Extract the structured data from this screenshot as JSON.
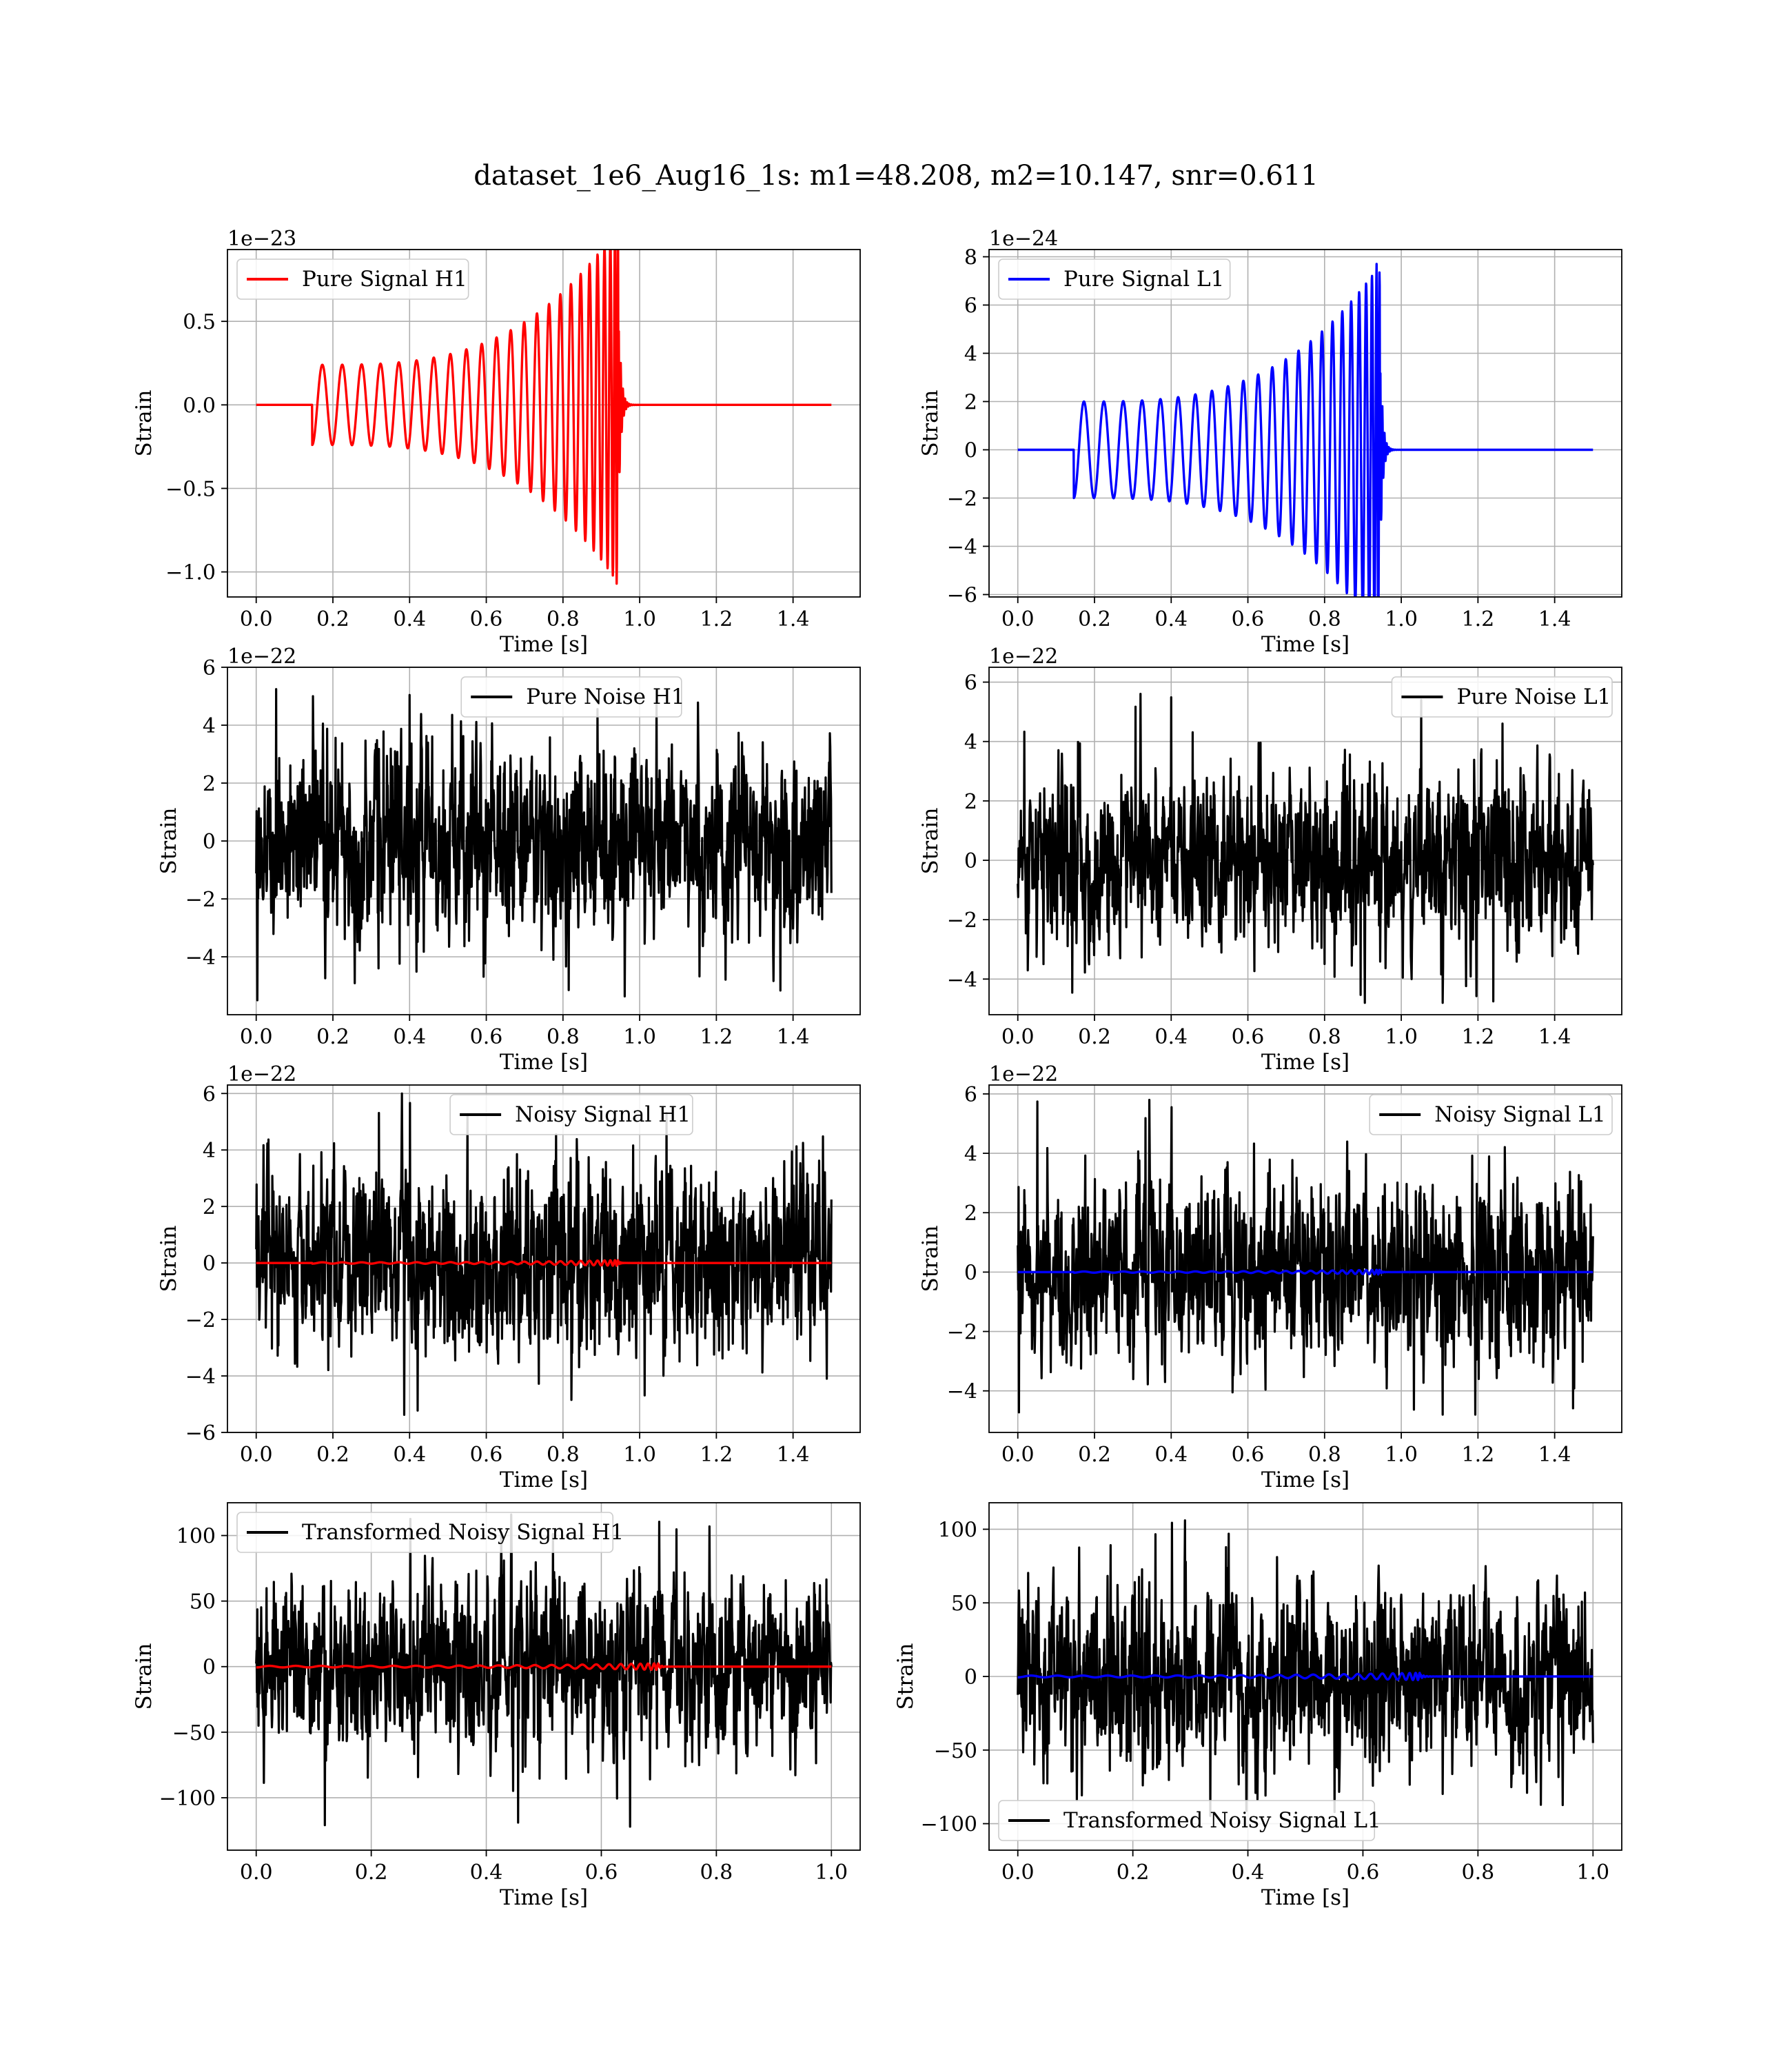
{
  "title": "dataset_1e6_Aug16_1s: m1=48.208, m2=10.147, snr=0.611",
  "colors": {
    "h1_signal": "#ff0000",
    "l1_signal": "#0000ff",
    "noise": "#000000",
    "grid": "#b0b0b0"
  },
  "chart_data": [
    {
      "type": "line",
      "legend": "Pure Signal H1",
      "legend_position": "top-left",
      "xlabel": "Time [s]",
      "ylabel": "Strain",
      "offset_text": "1e−23",
      "xlim": [
        -0.075,
        1.575
      ],
      "ylim": [
        -1.15,
        0.93
      ],
      "xticks": [
        0.0,
        0.2,
        0.4,
        0.6,
        0.8,
        1.0,
        1.2,
        1.4
      ],
      "xtick_labels": [
        "0.0",
        "0.2",
        "0.4",
        "0.6",
        "0.8",
        "1.0",
        "1.2",
        "1.4"
      ],
      "yticks": [
        -1.0,
        -0.5,
        0.0,
        0.5
      ],
      "ytick_labels": [
        "−1.0",
        "−0.5",
        "0.0",
        "0.5"
      ],
      "grid": true,
      "series": [
        {
          "name": "Pure Signal H1",
          "kind": "chirp",
          "color": "#ff0000",
          "t_start": 0.146,
          "t_merge": 0.945,
          "t_end": 1.5,
          "amp_start": 0.24,
          "amp_peak": 1.07,
          "n_cycles": 24,
          "peak_max": 0.83,
          "peak_min": -1.07
        }
      ]
    },
    {
      "type": "line",
      "legend": "Pure Signal L1",
      "legend_position": "top-left",
      "xlabel": "Time [s]",
      "ylabel": "Strain",
      "offset_text": "1e−24",
      "xlim": [
        -0.075,
        1.575
      ],
      "ylim": [
        -6.1,
        8.3
      ],
      "xticks": [
        0.0,
        0.2,
        0.4,
        0.6,
        0.8,
        1.0,
        1.2,
        1.4
      ],
      "xtick_labels": [
        "0.0",
        "0.2",
        "0.4",
        "0.6",
        "0.8",
        "1.0",
        "1.2",
        "1.4"
      ],
      "yticks": [
        -6,
        -4,
        -2,
        0,
        2,
        4,
        6,
        8
      ],
      "ytick_labels": [
        "−6",
        "−4",
        "−2",
        "0",
        "2",
        "4",
        "6",
        "8"
      ],
      "grid": true,
      "series": [
        {
          "name": "Pure Signal L1",
          "kind": "chirp",
          "color": "#0000ff",
          "t_start": 0.146,
          "t_merge": 0.945,
          "t_end": 1.5,
          "amp_start": 2.0,
          "amp_peak": 7.7,
          "n_cycles": 24,
          "peak_max": 7.7,
          "peak_min": -5.5
        }
      ]
    },
    {
      "type": "line",
      "legend": "Pure Noise H1",
      "legend_position": "top-center",
      "xlabel": "Time [s]",
      "ylabel": "Strain",
      "offset_text": "1e−22",
      "xlim": [
        -0.075,
        1.575
      ],
      "ylim": [
        -6.0,
        6.0
      ],
      "xticks": [
        0.0,
        0.2,
        0.4,
        0.6,
        0.8,
        1.0,
        1.2,
        1.4
      ],
      "xtick_labels": [
        "0.0",
        "0.2",
        "0.4",
        "0.6",
        "0.8",
        "1.0",
        "1.2",
        "1.4"
      ],
      "yticks": [
        -4,
        -2,
        0,
        2,
        4,
        6
      ],
      "ytick_labels": [
        "−4",
        "−2",
        "0",
        "2",
        "4",
        "6"
      ],
      "grid": true,
      "series": [
        {
          "name": "Pure Noise H1",
          "kind": "noise",
          "color": "#000000",
          "t_start": 0.0,
          "t_end": 1.5,
          "sigma": 1.6,
          "max": 5.5,
          "min": -5.5
        }
      ]
    },
    {
      "type": "line",
      "legend": "Pure Noise L1",
      "legend_position": "top-right",
      "xlabel": "Time [s]",
      "ylabel": "Strain",
      "offset_text": "1e−22",
      "xlim": [
        -0.075,
        1.575
      ],
      "ylim": [
        -5.2,
        6.5
      ],
      "xticks": [
        0.0,
        0.2,
        0.4,
        0.6,
        0.8,
        1.0,
        1.2,
        1.4
      ],
      "xtick_labels": [
        "0.0",
        "0.2",
        "0.4",
        "0.6",
        "0.8",
        "1.0",
        "1.2",
        "1.4"
      ],
      "yticks": [
        -4,
        -2,
        0,
        2,
        4,
        6
      ],
      "ytick_labels": [
        "−4",
        "−2",
        "0",
        "2",
        "4",
        "6"
      ],
      "grid": true,
      "series": [
        {
          "name": "Pure Noise L1",
          "kind": "noise",
          "color": "#000000",
          "t_start": 0.0,
          "t_end": 1.5,
          "sigma": 1.5,
          "max": 5.9,
          "min": -4.8
        }
      ]
    },
    {
      "type": "line",
      "legend": "Noisy Signal H1",
      "legend_position": "top-center",
      "xlabel": "Time [s]",
      "ylabel": "Strain",
      "offset_text": "1e−22",
      "xlim": [
        -0.075,
        1.575
      ],
      "ylim": [
        -6.0,
        6.3
      ],
      "xticks": [
        0.0,
        0.2,
        0.4,
        0.6,
        0.8,
        1.0,
        1.2,
        1.4
      ],
      "xtick_labels": [
        "0.0",
        "0.2",
        "0.4",
        "0.6",
        "0.8",
        "1.0",
        "1.2",
        "1.4"
      ],
      "yticks": [
        -6,
        -4,
        -2,
        0,
        2,
        4,
        6
      ],
      "ytick_labels": [
        "−6",
        "−4",
        "−2",
        "0",
        "2",
        "4",
        "6"
      ],
      "grid": true,
      "series": [
        {
          "name": "Noisy Signal H1",
          "kind": "noise",
          "color": "#000000",
          "t_start": 0.0,
          "t_end": 1.5,
          "sigma": 1.6,
          "max": 6.0,
          "min": -5.5
        },
        {
          "kind": "chirp",
          "color": "#ff0000",
          "t_start": 0.146,
          "t_merge": 0.945,
          "t_end": 1.5,
          "amp_start": 0.024,
          "amp_peak": 0.1,
          "n_cycles": 24
        }
      ]
    },
    {
      "type": "line",
      "legend": "Noisy Signal L1",
      "legend_position": "top-right",
      "xlabel": "Time [s]",
      "ylabel": "Strain",
      "offset_text": "1e−22",
      "xlim": [
        -0.075,
        1.575
      ],
      "ylim": [
        -5.4,
        6.3
      ],
      "xticks": [
        0.0,
        0.2,
        0.4,
        0.6,
        0.8,
        1.0,
        1.2,
        1.4
      ],
      "xtick_labels": [
        "0.0",
        "0.2",
        "0.4",
        "0.6",
        "0.8",
        "1.0",
        "1.2",
        "1.4"
      ],
      "yticks": [
        -4,
        -2,
        0,
        2,
        4,
        6
      ],
      "ytick_labels": [
        "−4",
        "−2",
        "0",
        "2",
        "4",
        "6"
      ],
      "grid": true,
      "series": [
        {
          "name": "Noisy Signal L1",
          "kind": "noise",
          "color": "#000000",
          "t_start": 0.0,
          "t_end": 1.5,
          "sigma": 1.5,
          "max": 5.8,
          "min": -4.8
        },
        {
          "kind": "chirp",
          "color": "#0000ff",
          "t_start": 0.146,
          "t_merge": 0.945,
          "t_end": 1.5,
          "amp_start": 0.02,
          "amp_peak": 0.077,
          "n_cycles": 24
        }
      ]
    },
    {
      "type": "line",
      "legend": "Transformed Noisy Signal H1",
      "legend_position": "top-left",
      "xlabel": "Time [s]",
      "ylabel": "Strain",
      "offset_text": "",
      "xlim": [
        -0.05,
        1.05
      ],
      "ylim": [
        -140,
        125
      ],
      "xticks": [
        0.0,
        0.2,
        0.4,
        0.6,
        0.8,
        1.0
      ],
      "xtick_labels": [
        "0.0",
        "0.2",
        "0.4",
        "0.6",
        "0.8",
        "1.0"
      ],
      "yticks": [
        -100,
        -50,
        0,
        50,
        100
      ],
      "ytick_labels": [
        "−100",
        "−50",
        "0",
        "50",
        "100"
      ],
      "grid": true,
      "series": [
        {
          "name": "Transformed Noisy Signal H1",
          "kind": "noise",
          "color": "#000000",
          "t_start": 0.0,
          "t_end": 1.0,
          "sigma": 32,
          "max": 116,
          "min": -127
        },
        {
          "kind": "chirp",
          "color": "#ff0000",
          "t_start": 0.0,
          "t_merge": 0.7,
          "t_end": 1.0,
          "amp_start": 0.6,
          "amp_peak": 2.5,
          "n_cycles": 24
        }
      ]
    },
    {
      "type": "line",
      "legend": "Transformed Noisy Signal L1",
      "legend_position": "bottom-left",
      "xlabel": "Time [s]",
      "ylabel": "Strain",
      "offset_text": "",
      "xlim": [
        -0.05,
        1.05
      ],
      "ylim": [
        -118,
        118
      ],
      "xticks": [
        0.0,
        0.2,
        0.4,
        0.6,
        0.8,
        1.0
      ],
      "xtick_labels": [
        "0.0",
        "0.2",
        "0.4",
        "0.6",
        "0.8",
        "1.0"
      ],
      "yticks": [
        -100,
        -50,
        0,
        50,
        100
      ],
      "ytick_labels": [
        "−100",
        "−50",
        "0",
        "50",
        "100"
      ],
      "grid": true,
      "series": [
        {
          "name": "Transformed Noisy Signal L1",
          "kind": "noise",
          "color": "#000000",
          "t_start": 0.0,
          "t_end": 1.0,
          "sigma": 30,
          "max": 106,
          "min": -98
        },
        {
          "kind": "chirp",
          "color": "#0000ff",
          "t_start": 0.0,
          "t_merge": 0.7,
          "t_end": 1.0,
          "amp_start": 0.6,
          "amp_peak": 2.5,
          "n_cycles": 24
        }
      ]
    }
  ]
}
